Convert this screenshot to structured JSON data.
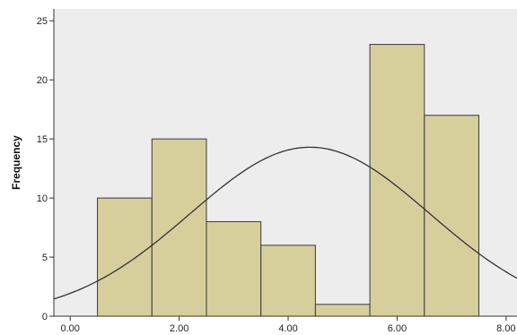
{
  "chart_data": {
    "type": "bar",
    "subtype": "histogram",
    "ylabel": "Frequency",
    "xlabel": "",
    "title": "",
    "xlim": [
      -0.3,
      8.2
    ],
    "ylim": [
      0,
      26
    ],
    "x_ticks": [
      0,
      2,
      4,
      6,
      8
    ],
    "x_tick_labels": [
      "0.00",
      "2.00",
      "4.00",
      "6.00",
      "8.00"
    ],
    "y_ticks": [
      0,
      5,
      10,
      15,
      20,
      25
    ],
    "y_tick_labels": [
      "0",
      "5",
      "10",
      "15",
      "20",
      "25"
    ],
    "bins": [
      {
        "start": 0.5,
        "end": 1.5,
        "count": 10
      },
      {
        "start": 1.5,
        "end": 2.5,
        "count": 15
      },
      {
        "start": 2.5,
        "end": 3.5,
        "count": 8
      },
      {
        "start": 3.5,
        "end": 4.5,
        "count": 6
      },
      {
        "start": 4.5,
        "end": 5.5,
        "count": 1
      },
      {
        "start": 5.5,
        "end": 6.5,
        "count": 23
      },
      {
        "start": 6.5,
        "end": 7.5,
        "count": 17
      }
    ],
    "normal_curve": {
      "mean": 4.4,
      "std_dev": 2.2,
      "peak": 14.3
    },
    "grid": false,
    "legend": "none",
    "colors": {
      "plot_background": "#ededed",
      "bar_fill": "#d6cf9c",
      "bar_stroke": "#3a3a3a",
      "curve": "#333333",
      "axis": "#333333"
    }
  }
}
